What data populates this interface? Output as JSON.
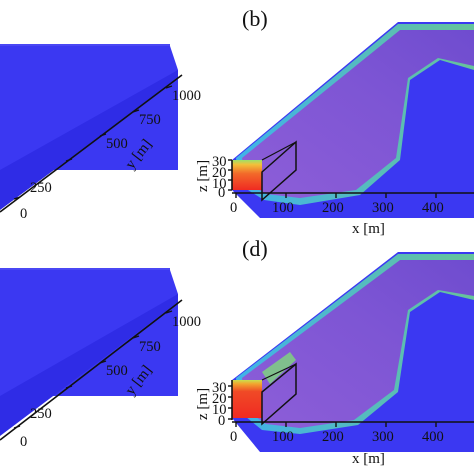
{
  "panels": {
    "top_left": {
      "y_ticks": [
        "1000",
        "750",
        "500",
        "250",
        "0"
      ],
      "y_axis_label": "y [m]"
    },
    "top_right": {
      "label": "(b)",
      "z_ticks": [
        "30",
        "20",
        "10",
        "0"
      ],
      "z_axis_label": "z [m]",
      "x_ticks": [
        "0",
        "100",
        "200",
        "300",
        "400"
      ],
      "x_axis_label": "x [m]"
    },
    "bottom_left": {
      "y_ticks": [
        "1000",
        "750",
        "500",
        "250",
        "0"
      ],
      "y_axis_label": "y [m]"
    },
    "bottom_right": {
      "label": "(d)",
      "z_ticks": [
        "30",
        "20",
        "10",
        "0"
      ],
      "z_axis_label": "z [m]",
      "x_ticks": [
        "0",
        "100",
        "200",
        "300",
        "400"
      ],
      "x_axis_label": "x [m]"
    }
  },
  "colors": {
    "field_blue": "#3b38f2",
    "plume_purple": "#7a55d6",
    "source_red": "#f23a2a",
    "plume_edge_green": "#5fd07a"
  }
}
